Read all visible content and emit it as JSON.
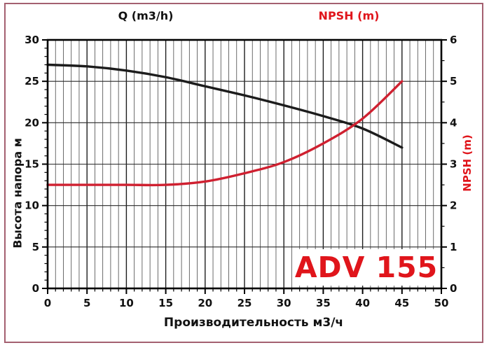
{
  "titles": {
    "flow_title": "Q (m3/h)",
    "npsh_title": "NPSH (m)"
  },
  "colors": {
    "text_red": "#e0151b",
    "frame": "#a46070",
    "head_curve": "#1c1c1c",
    "npsh_curve": "#cf2030"
  },
  "chart_data": {
    "type": "line",
    "title_left": "Q (m3/h)",
    "title_right": "NPSH (m)",
    "annotation": "ADV 155",
    "x": [
      0,
      5,
      10,
      15,
      20,
      25,
      30,
      35,
      40,
      45
    ],
    "series": [
      {
        "name": "head-curve",
        "axis": "left",
        "color": "#1c1c1c",
        "values": [
          27,
          26.8,
          26.3,
          25.5,
          24.4,
          23.3,
          22.1,
          20.8,
          19.3,
          17
        ]
      },
      {
        "name": "npsh-curve",
        "axis": "right",
        "color": "#cf2030",
        "values": [
          2.5,
          2.5,
          2.5,
          2.5,
          2.58,
          2.78,
          3.05,
          3.5,
          4.1,
          5.0
        ]
      }
    ],
    "x_axis": {
      "label": "Производительность м3/ч",
      "min": 0,
      "max": 50,
      "major_ticks": [
        0,
        5,
        10,
        15,
        20,
        25,
        30,
        35,
        40,
        45,
        50
      ],
      "minor_step": 1
    },
    "y_axis_left": {
      "label": "Высота напора м",
      "min": 0,
      "max": 30,
      "major_ticks": [
        0,
        5,
        10,
        15,
        20,
        25,
        30
      ],
      "minor_step": 1
    },
    "y_axis_right": {
      "label": "NPSH (m)",
      "min": 0,
      "max": 6,
      "major_ticks": [
        0,
        1,
        2,
        3,
        4,
        5,
        6
      ],
      "minor_step": 0.5
    },
    "grid": {
      "vertical_step": 1,
      "vertical_major_step": 5,
      "horizontal_step": 5,
      "grid_on": true
    },
    "legend": "none"
  }
}
